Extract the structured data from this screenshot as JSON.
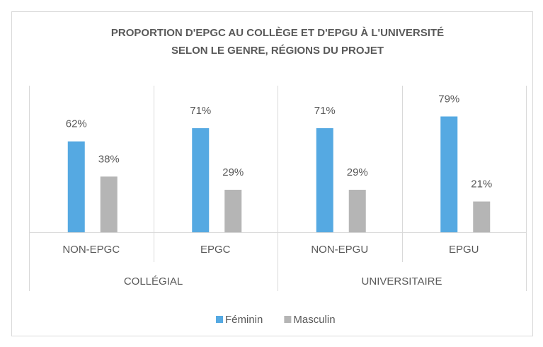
{
  "chart_data": {
    "type": "bar",
    "title": [
      "PROPORTION D'EPGC AU COLLÈGE ET D'EPGU À L'UNIVERSITÉ",
      "SELON LE GENRE, RÉGIONS DU PROJET"
    ],
    "groups": [
      {
        "name": "COLLÉGIAL",
        "categories": [
          "NON-EPGC",
          "EPGC"
        ]
      },
      {
        "name": "UNIVERSITAIRE",
        "categories": [
          "NON-EPGU",
          "EPGU"
        ]
      }
    ],
    "series": [
      {
        "name": "Féminin",
        "color": "#55a9e2",
        "values": [
          62,
          71,
          71,
          79
        ],
        "value_labels": [
          "62%",
          "71%",
          "71%",
          "79%"
        ]
      },
      {
        "name": "Masculin",
        "color": "#b5b5b5",
        "values": [
          38,
          29,
          29,
          21
        ],
        "value_labels": [
          "38%",
          "29%",
          "29%",
          "21%"
        ]
      }
    ],
    "ylim": [
      0,
      100
    ]
  }
}
